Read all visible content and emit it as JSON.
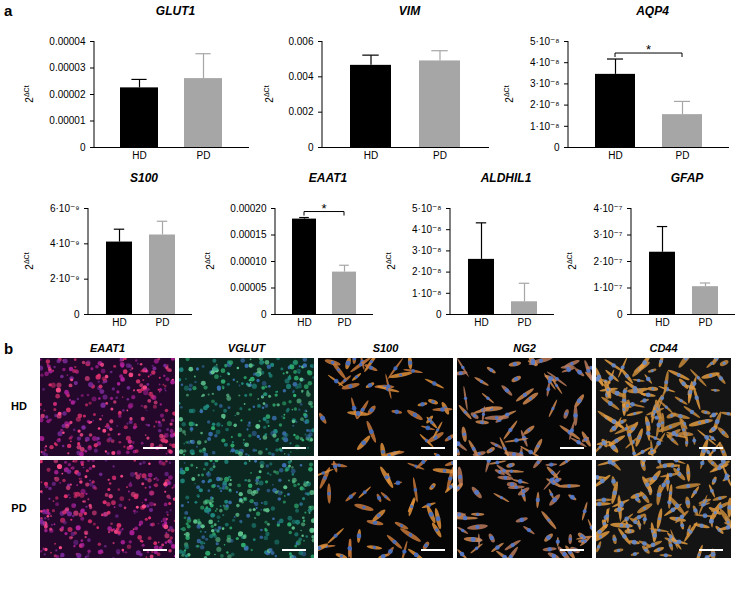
{
  "chart_data": [
    {
      "type": "bar",
      "title": "GLUT1",
      "categories": [
        "HD",
        "PD"
      ],
      "values": [
        2.25e-05,
        2.6e-05
      ],
      "errors": [
        3e-06,
        9.2e-06
      ],
      "colors": [
        "#000000",
        "#a6a6a6"
      ],
      "y_label": "2ΔCt",
      "ylim": [
        0,
        4e-05
      ],
      "yticks": [
        0,
        1e-05,
        2e-05,
        3e-05,
        4e-05
      ]
    },
    {
      "type": "bar",
      "title": "VIM",
      "categories": [
        "HD",
        "PD"
      ],
      "values": [
        0.00465,
        0.0049
      ],
      "errors": [
        0.00055,
        0.00055
      ],
      "colors": [
        "#000000",
        "#a6a6a6"
      ],
      "y_label": "2ΔCt",
      "ylim": [
        0,
        0.006
      ],
      "yticks": [
        0,
        0.002,
        0.004,
        0.006
      ]
    },
    {
      "type": "bar",
      "title": "AQP4",
      "categories": [
        "HD",
        "PD"
      ],
      "values": [
        3.45e-08,
        1.55e-08
      ],
      "errors": [
        7e-09,
        6e-09
      ],
      "colors": [
        "#000000",
        "#a6a6a6"
      ],
      "y_label": "2ΔCt",
      "ylim": [
        0,
        5e-08
      ],
      "yticks": [
        0,
        {
          "value": 1e-08,
          "label": "1·10⁻⁸"
        },
        {
          "value": 2e-08,
          "label": "2·10⁻⁸"
        },
        {
          "value": 3e-08,
          "label": "3·10⁻⁸"
        },
        {
          "value": 4e-08,
          "label": "4·10⁻⁸"
        },
        {
          "value": 5e-08,
          "label": "5·10⁻⁸"
        }
      ],
      "annotations": [
        {
          "text": "*",
          "from": "HD",
          "to": "PD"
        }
      ]
    },
    {
      "type": "bar",
      "title": "S100",
      "categories": [
        "HD",
        "PD"
      ],
      "values": [
        4.1e-09,
        4.5e-09
      ],
      "errors": [
        7e-10,
        7.5e-10
      ],
      "colors": [
        "#000000",
        "#a6a6a6"
      ],
      "y_label": "2ΔCt",
      "ylim": [
        0,
        6e-09
      ],
      "yticks": [
        0,
        {
          "value": 2e-09,
          "label": "2·10⁻⁹"
        },
        {
          "value": 4e-09,
          "label": "4·10⁻⁹"
        },
        {
          "value": 6e-09,
          "label": "6·10⁻⁹"
        }
      ]
    },
    {
      "type": "bar",
      "title": "EAAT1",
      "categories": [
        "HD",
        "PD"
      ],
      "values": [
        0.00018,
        8e-05
      ],
      "errors": [
        2e-06,
        1.2e-05
      ],
      "colors": [
        "#000000",
        "#a6a6a6"
      ],
      "y_label": "2ΔCt",
      "ylim": [
        0,
        0.0002
      ],
      "yticks": [
        0,
        5e-05,
        {
          "value": 0.0001,
          "label": "0.00010"
        },
        0.00015,
        {
          "value": 0.0002,
          "label": "0.00020"
        }
      ],
      "annotations": [
        {
          "text": "*",
          "from": "HD",
          "to": "PD"
        }
      ]
    },
    {
      "type": "bar",
      "title": "ALDHIL1",
      "categories": [
        "HD",
        "PD"
      ],
      "values": [
        2.6e-08,
        6e-09
      ],
      "errors": [
        1.7e-08,
        8.5e-09
      ],
      "colors": [
        "#000000",
        "#a6a6a6"
      ],
      "y_label": "2ΔCt",
      "ylim": [
        0,
        5e-08
      ],
      "yticks": [
        0,
        {
          "value": 1e-08,
          "label": "1·10⁻⁸"
        },
        {
          "value": 2e-08,
          "label": "2·10⁻⁸"
        },
        {
          "value": 3e-08,
          "label": "3·10⁻⁸"
        },
        {
          "value": 4e-08,
          "label": "4·10⁻⁸"
        },
        {
          "value": 5e-08,
          "label": "5·10⁻⁸"
        }
      ]
    },
    {
      "type": "bar",
      "title": "GFAP",
      "categories": [
        "HD",
        "PD"
      ],
      "values": [
        2.35e-07,
        1.05e-07
      ],
      "errors": [
        9.5e-08,
        1.2e-08
      ],
      "colors": [
        "#000000",
        "#a6a6a6"
      ],
      "y_label": "2ΔCt",
      "ylim": [
        0,
        4e-07
      ],
      "yticks": [
        0,
        {
          "value": 1e-07,
          "label": "1·10⁻⁷"
        },
        {
          "value": 2e-07,
          "label": "2·10⁻⁷"
        },
        {
          "value": 3e-07,
          "label": "3·10⁻⁷"
        },
        {
          "value": 4e-07,
          "label": "4·10⁻⁷"
        }
      ]
    }
  ],
  "panel_labels": [
    "a",
    "b"
  ],
  "micrographs": {
    "rows": [
      "HD",
      "PD"
    ],
    "columns": [
      "EAAT1",
      "VGLUT",
      "S100",
      "NG2",
      "CD44"
    ]
  }
}
